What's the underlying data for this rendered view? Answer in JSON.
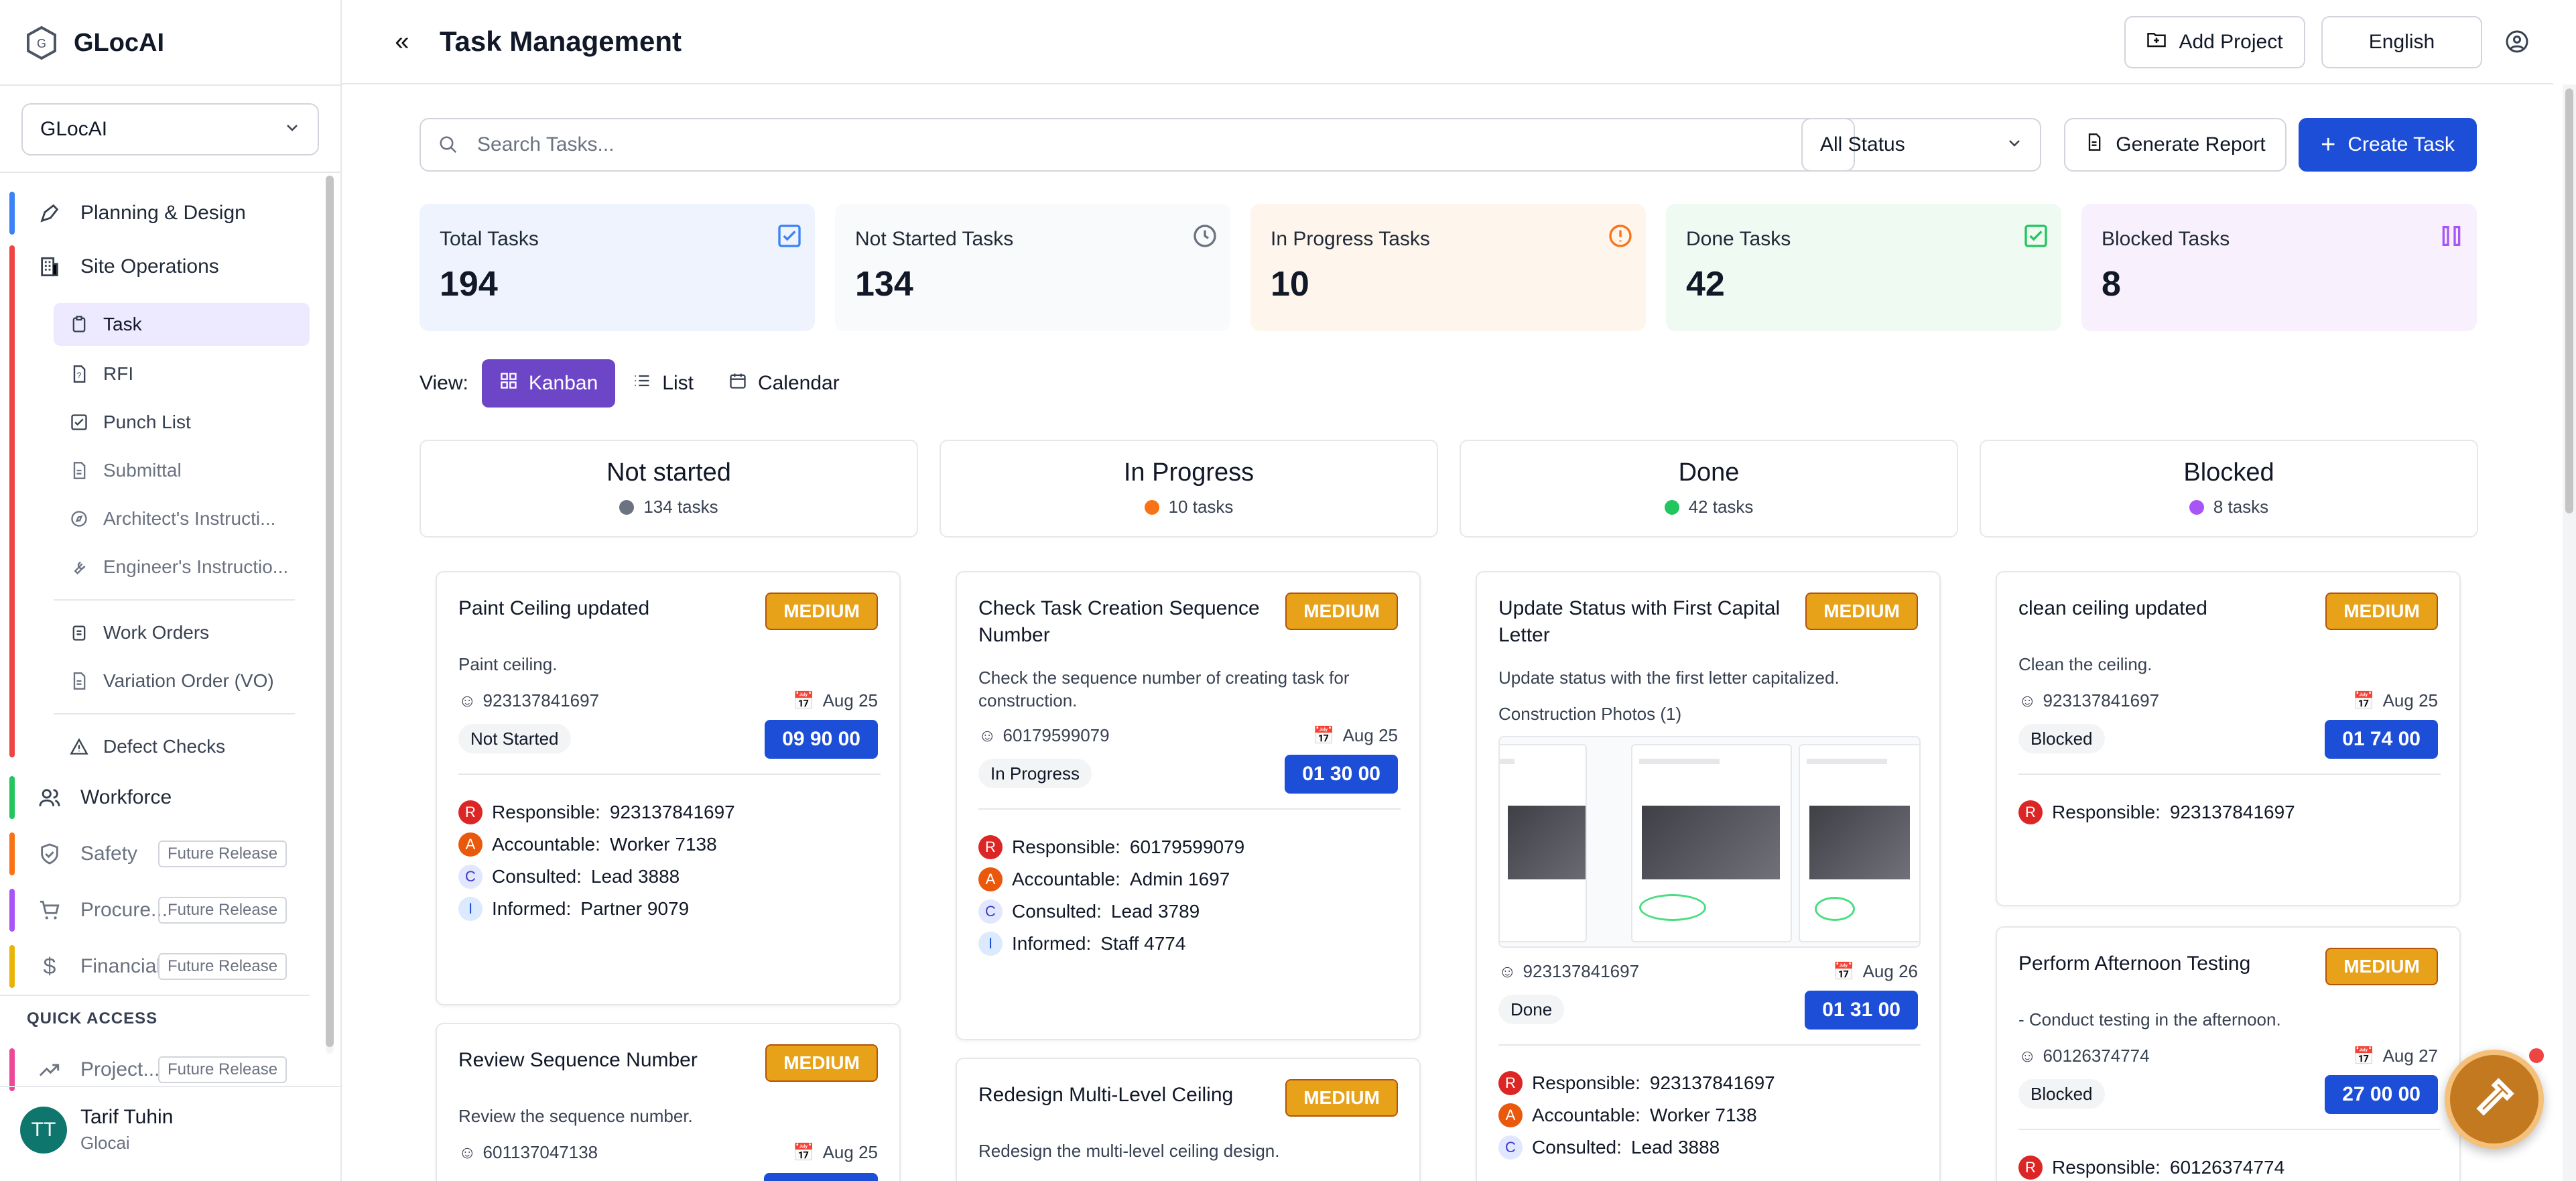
{
  "brand": {
    "name": "GLocAI"
  },
  "project_select": {
    "value": "GLocAI"
  },
  "nav": {
    "planning": "Planning & Design",
    "site_ops": "Site Operations",
    "sub_items": [
      "Task",
      "RFI",
      "Punch List",
      "Submittal",
      "Architect's Instructi...",
      "Engineer's Instructio...",
      "Work Orders",
      "Variation Order (VO)",
      "Defect Checks"
    ],
    "workforce": "Workforce",
    "safety": "Safety",
    "procurement": "Procure...",
    "financial": "Financial",
    "future_label": "Future Release",
    "quick_access": "QUICK ACCESS",
    "projects": "Project..."
  },
  "user": {
    "initials": "TT",
    "name": "Tarif Tuhin",
    "org": "Glocai"
  },
  "header": {
    "title": "Task Management",
    "add_project": "Add Project",
    "language": "English"
  },
  "toolbar": {
    "search_placeholder": "Search Tasks...",
    "status_filter": "All Status",
    "generate_report": "Generate Report",
    "create_task": "Create Task"
  },
  "stats": [
    {
      "label": "Total Tasks",
      "value": "194",
      "color": "#eff4fd"
    },
    {
      "label": "Not Started Tasks",
      "value": "134",
      "color": "#f9fafb"
    },
    {
      "label": "In Progress Tasks",
      "value": "10",
      "color": "#fef6ec"
    },
    {
      "label": "Done Tasks",
      "value": "42",
      "color": "#eefaf2"
    },
    {
      "label": "Blocked Tasks",
      "value": "8",
      "color": "#f8f1fd"
    }
  ],
  "view": {
    "label": "View:",
    "kanban": "Kanban",
    "list": "List",
    "calendar": "Calendar"
  },
  "columns": [
    {
      "title": "Not started",
      "count": "134 tasks",
      "dot": "#6b7280"
    },
    {
      "title": "In Progress",
      "count": "10 tasks",
      "dot": "#f97316"
    },
    {
      "title": "Done",
      "count": "42 tasks",
      "dot": "#22c55e"
    },
    {
      "title": "Blocked",
      "count": "8 tasks",
      "dot": "#a855f7"
    }
  ],
  "labels": {
    "responsible": "Responsible:",
    "accountable": "Accountable:",
    "consulted": "Consulted:",
    "informed": "Informed:",
    "photos": "Construction Photos (1)"
  },
  "cards": {
    "c1": {
      "title": "Paint Ceiling updated",
      "priority": "MEDIUM",
      "desc": "Paint ceiling.",
      "phone": "923137841697",
      "date": "Aug 25",
      "status": "Not Started",
      "code": "09 90 00",
      "responsible": "923137841697",
      "accountable": "Worker 7138",
      "consulted": "Lead 3888",
      "informed": "Partner 9079"
    },
    "c2": {
      "title": "Review Sequence Number",
      "priority": "MEDIUM",
      "desc": "Review the sequence number.",
      "phone": "601137047138",
      "date": "Aug 25"
    },
    "c3": {
      "title": "Check Task Creation Sequence Number",
      "priority": "MEDIUM",
      "desc": "Check the sequence number of creating task for construction.",
      "phone": "60179599079",
      "date": "Aug 25",
      "status": "In Progress",
      "code": "01 30 00",
      "responsible": "60179599079",
      "accountable": "Admin 1697",
      "consulted": "Lead 3789",
      "informed": "Staff 4774"
    },
    "c4": {
      "title": "Redesign Multi-Level Ceiling",
      "priority": "MEDIUM",
      "desc": "Redesign the multi-level ceiling design."
    },
    "c5": {
      "title": "Update Status with First Capital Letter",
      "priority": "MEDIUM",
      "desc": "Update status with the first letter capitalized.",
      "phone": "923137841697",
      "date": "Aug 26",
      "status": "Done",
      "code": "01 31 00",
      "responsible": "923137841697",
      "accountable": "Worker 7138",
      "consulted": "Lead 3888"
    },
    "c6": {
      "title": "clean ceiling updated",
      "priority": "MEDIUM",
      "desc": "Clean the ceiling.",
      "phone": "923137841697",
      "date": "Aug 25",
      "status": "Blocked",
      "code": "01 74 00",
      "responsible": "923137841697"
    },
    "c7": {
      "title": "Perform Afternoon Testing",
      "priority": "MEDIUM",
      "desc": "- Conduct testing in the afternoon.",
      "phone": "60126374774",
      "date": "Aug 27",
      "status": "Blocked",
      "code": "27 00 00",
      "responsible": "60126374774"
    }
  }
}
